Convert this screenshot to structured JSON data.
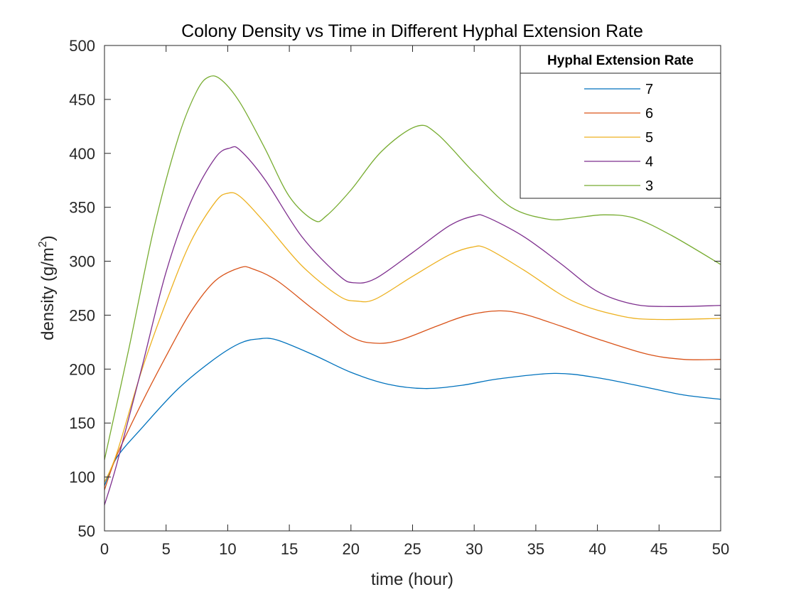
{
  "chart_data": {
    "type": "line",
    "title": "Colony Density vs Time in Different Hyphal Extension Rate",
    "xlabel": "time (hour)",
    "ylabel_main": "density (g/m",
    "ylabel_sup": "2",
    "ylabel_close": ")",
    "xlim": [
      0,
      50
    ],
    "ylim": [
      50,
      500
    ],
    "xticks": [
      0,
      5,
      10,
      15,
      20,
      25,
      30,
      35,
      40,
      45,
      50
    ],
    "yticks": [
      50,
      100,
      150,
      200,
      250,
      300,
      350,
      400,
      450,
      500
    ],
    "grid": false,
    "legend": {
      "title": "Hyphal Extension Rate",
      "location": "top-right"
    },
    "series": [
      {
        "name": "7",
        "color": "#0072BD",
        "points": [
          [
            0,
            92
          ],
          [
            1,
            118
          ],
          [
            3,
            145
          ],
          [
            6,
            182
          ],
          [
            9,
            210
          ],
          [
            11,
            224
          ],
          [
            12.5,
            228
          ],
          [
            14,
            227
          ],
          [
            17,
            213
          ],
          [
            20,
            197
          ],
          [
            23,
            186
          ],
          [
            26,
            182
          ],
          [
            29,
            185
          ],
          [
            32,
            191
          ],
          [
            36.5,
            196
          ],
          [
            40,
            192
          ],
          [
            44,
            183
          ],
          [
            47,
            176
          ],
          [
            50,
            172
          ]
        ]
      },
      {
        "name": "6",
        "color": "#D95319",
        "points": [
          [
            0,
            88
          ],
          [
            1,
            120
          ],
          [
            3,
            168
          ],
          [
            5,
            212
          ],
          [
            7,
            253
          ],
          [
            9,
            282
          ],
          [
            11,
            294
          ],
          [
            12,
            293
          ],
          [
            14,
            282
          ],
          [
            17,
            255
          ],
          [
            20,
            230
          ],
          [
            22,
            224
          ],
          [
            24,
            227
          ],
          [
            27,
            240
          ],
          [
            29.5,
            250
          ],
          [
            32,
            254
          ],
          [
            34,
            251
          ],
          [
            37,
            240
          ],
          [
            40,
            228
          ],
          [
            44,
            214
          ],
          [
            47,
            209
          ],
          [
            50,
            209
          ]
        ]
      },
      {
        "name": "5",
        "color": "#EDB120",
        "points": [
          [
            0,
            95
          ],
          [
            1,
            122
          ],
          [
            3,
            198
          ],
          [
            5,
            262
          ],
          [
            7,
            318
          ],
          [
            9,
            355
          ],
          [
            10,
            363
          ],
          [
            11,
            360
          ],
          [
            13,
            336
          ],
          [
            16,
            296
          ],
          [
            19,
            268
          ],
          [
            20.5,
            263
          ],
          [
            22,
            265
          ],
          [
            25,
            286
          ],
          [
            28,
            306
          ],
          [
            29.8,
            313
          ],
          [
            31,
            312
          ],
          [
            34,
            292
          ],
          [
            38,
            263
          ],
          [
            42,
            249
          ],
          [
            45,
            246
          ],
          [
            50,
            247
          ]
        ]
      },
      {
        "name": "4",
        "color": "#7E2F8E",
        "points": [
          [
            0,
            74
          ],
          [
            1,
            112
          ],
          [
            3,
            200
          ],
          [
            5,
            290
          ],
          [
            7,
            355
          ],
          [
            9,
            396
          ],
          [
            10.2,
            405
          ],
          [
            11,
            403
          ],
          [
            13,
            376
          ],
          [
            16,
            323
          ],
          [
            19,
            287
          ],
          [
            20.3,
            280
          ],
          [
            22,
            284
          ],
          [
            25,
            308
          ],
          [
            28,
            333
          ],
          [
            30,
            342
          ],
          [
            31,
            341
          ],
          [
            34,
            323
          ],
          [
            37,
            298
          ],
          [
            40,
            272
          ],
          [
            43,
            260
          ],
          [
            46,
            258
          ],
          [
            50,
            259
          ]
        ]
      },
      {
        "name": "3",
        "color": "#77AC30",
        "points": [
          [
            0,
            116
          ],
          [
            2,
            220
          ],
          [
            4,
            330
          ],
          [
            6,
            415
          ],
          [
            7.5,
            458
          ],
          [
            8.5,
            471
          ],
          [
            9.5,
            468
          ],
          [
            11,
            447
          ],
          [
            13,
            405
          ],
          [
            15,
            360
          ],
          [
            17,
            338
          ],
          [
            18,
            342
          ],
          [
            20,
            366
          ],
          [
            22.5,
            402
          ],
          [
            25.3,
            425
          ],
          [
            27,
            418
          ],
          [
            30,
            382
          ],
          [
            33,
            350
          ],
          [
            36,
            339
          ],
          [
            38,
            340
          ],
          [
            40.5,
            343
          ],
          [
            43,
            340
          ],
          [
            46,
            324
          ],
          [
            50,
            297
          ]
        ]
      }
    ]
  }
}
